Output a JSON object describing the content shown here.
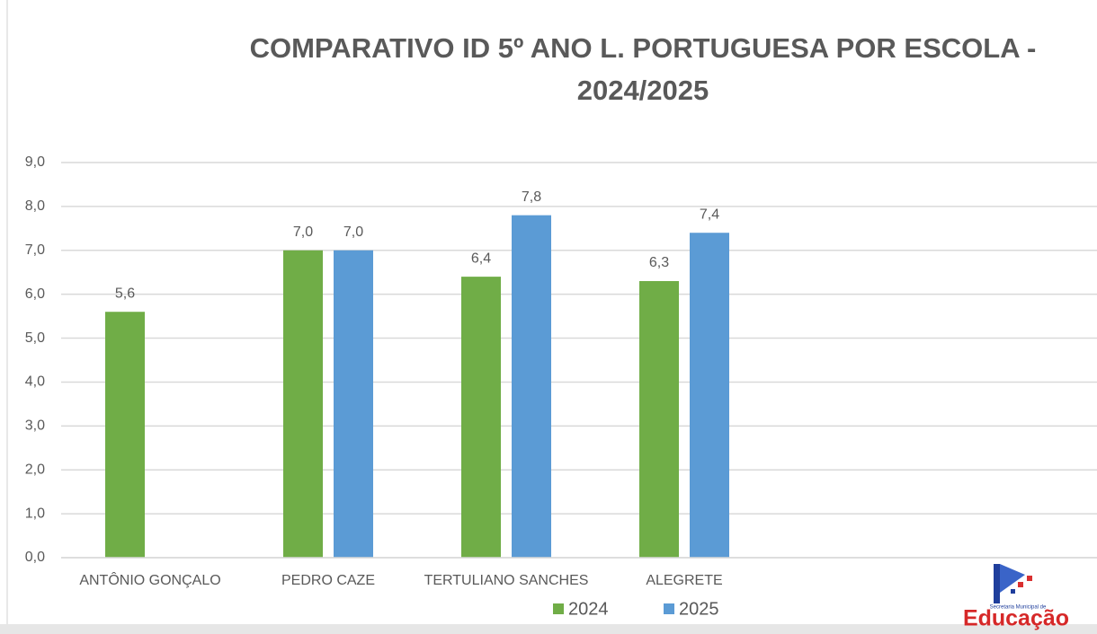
{
  "chart_data": {
    "type": "bar",
    "title": [
      "COMPARATIVO ID 5º ANO L. PORTUGUESA POR ESCOLA -",
      "2024/2025"
    ],
    "categories": [
      "ANTÔNIO GONÇALO",
      "PEDRO CAZE",
      "TERTULIANO SANCHES",
      "ALEGRETE"
    ],
    "series": [
      {
        "name": "2024",
        "color": "#70ad47",
        "values": [
          5.6,
          7.0,
          6.4,
          6.3
        ],
        "value_labels": [
          "5,6",
          "7,0",
          "6,4",
          "6,3"
        ]
      },
      {
        "name": "2025",
        "color": "#5b9bd5",
        "values": [
          null,
          7.0,
          7.8,
          7.4
        ],
        "value_labels": [
          null,
          "7,0",
          "7,8",
          "7,4"
        ]
      }
    ],
    "ylim": [
      0,
      9
    ],
    "yticks": [
      {
        "value": 0,
        "label": "0,0"
      },
      {
        "value": 1,
        "label": "1,0"
      },
      {
        "value": 2,
        "label": "2,0"
      },
      {
        "value": 3,
        "label": "3,0"
      },
      {
        "value": 4,
        "label": "4,0"
      },
      {
        "value": 5,
        "label": "5,0"
      },
      {
        "value": 6,
        "label": "6,0"
      },
      {
        "value": 7,
        "label": "7,0"
      },
      {
        "value": 8,
        "label": "8,0"
      },
      {
        "value": 9,
        "label": "9,0"
      }
    ],
    "grid": true,
    "legend": "bottom",
    "logo": {
      "caption": "Secretaria Municipal de",
      "text": "Educação"
    }
  }
}
